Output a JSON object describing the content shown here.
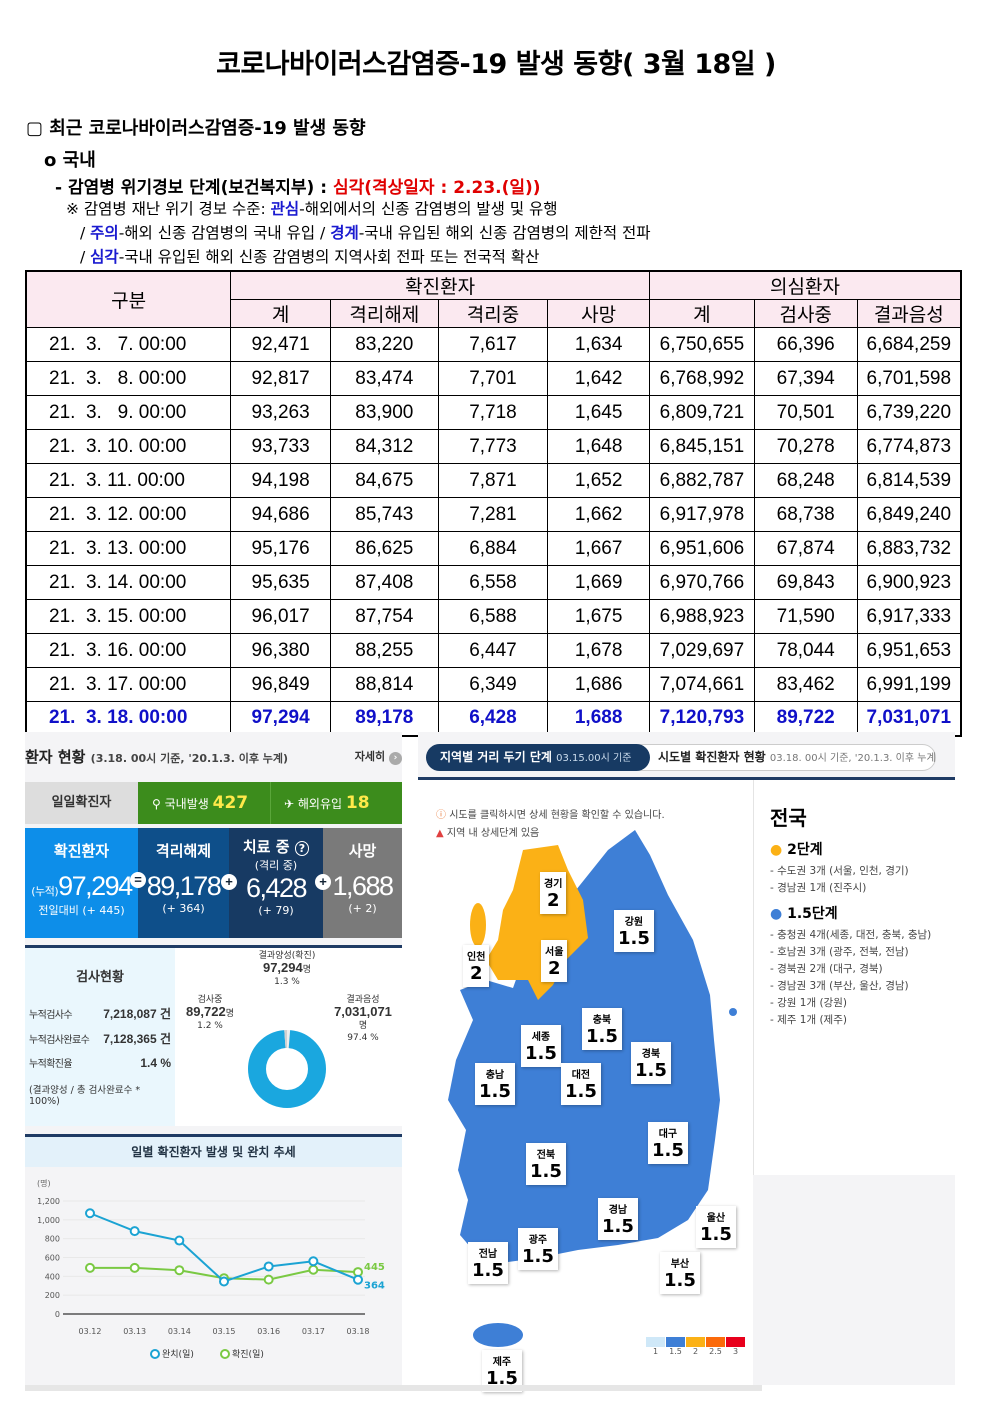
{
  "title": "코로나바이러스감염증-19 발생 동향( 3월 18일 )",
  "section": "▢ 최근 코로나바이러스감염증-19 발생 동향",
  "sub": "o 국내",
  "alert": {
    "label": "- 감염병 위기경보 단계(보건복지부) : ",
    "value": "심각(격상일자 : 2.23.(일))"
  },
  "levels": {
    "intro": "※ 감염병 재난 위기 경보 수준: ",
    "l1": "관심",
    "l1d": "-해외에서의 신종 감염병의 발생 및 유행",
    "l2": "주의",
    "l2d": "-해외 신종 감염병의 국내 유입 / ",
    "l3": "경계",
    "l3d": "-국내 유입된 해외 신종 감염병의 제한적 전파",
    "l4": "심각",
    "l4d": "-국내 유입된 해외 신종 감염병의 지역사회 전파 또는 전국적 확산",
    "slash": "/ "
  },
  "table": {
    "h_gubun": "구분",
    "h_confirmed": "확진환자",
    "h_suspected": "의심환자",
    "sub": [
      "계",
      "격리해제",
      "격리중",
      "사망",
      "계",
      "검사중",
      "결과음성"
    ],
    "rows": [
      [
        "21.  3.   7. 00:00",
        "92,471",
        "83,220",
        "7,617",
        "1,634",
        "6,750,655",
        "66,396",
        "6,684,259"
      ],
      [
        "21.  3.   8. 00:00",
        "92,817",
        "83,474",
        "7,701",
        "1,642",
        "6,768,992",
        "67,394",
        "6,701,598"
      ],
      [
        "21.  3.   9. 00:00",
        "93,263",
        "83,900",
        "7,718",
        "1,645",
        "6,809,721",
        "70,501",
        "6,739,220"
      ],
      [
        "21.  3. 10. 00:00",
        "93,733",
        "84,312",
        "7,773",
        "1,648",
        "6,845,151",
        "70,278",
        "6,774,873"
      ],
      [
        "21.  3. 11. 00:00",
        "94,198",
        "84,675",
        "7,871",
        "1,652",
        "6,882,787",
        "68,248",
        "6,814,539"
      ],
      [
        "21.  3. 12. 00:00",
        "94,686",
        "85,743",
        "7,281",
        "1,662",
        "6,917,978",
        "68,738",
        "6,849,240"
      ],
      [
        "21.  3. 13. 00:00",
        "95,176",
        "86,625",
        "6,884",
        "1,667",
        "6,951,606",
        "67,874",
        "6,883,732"
      ],
      [
        "21.  3. 14. 00:00",
        "95,635",
        "87,408",
        "6,558",
        "1,669",
        "6,970,766",
        "69,843",
        "6,900,923"
      ],
      [
        "21.  3. 15. 00:00",
        "96,017",
        "87,754",
        "6,588",
        "1,675",
        "6,988,923",
        "71,590",
        "6,917,333"
      ],
      [
        "21.  3. 16. 00:00",
        "96,380",
        "88,255",
        "6,447",
        "1,678",
        "7,029,697",
        "78,044",
        "6,951,653"
      ],
      [
        "21.  3. 17. 00:00",
        "96,849",
        "88,814",
        "6,349",
        "1,686",
        "7,074,661",
        "83,462",
        "6,991,199"
      ],
      [
        "21.  3. 18. 00:00",
        "97,294",
        "89,178",
        "6,428",
        "1,688",
        "7,120,793",
        "89,722",
        "7,031,071"
      ]
    ]
  },
  "status": {
    "title": "환자 현황",
    "note": "(3.18. 00시 기준, '20.1.3. 이후 누계)",
    "more": "자세히",
    "daily_label": "일일확진자",
    "domestic_label": "국내발생",
    "domestic": "427",
    "overseas_label": "해외유입",
    "overseas": "18",
    "confirmed": {
      "h": "확진환자",
      "prefix": "(누적)",
      "v": "97,294",
      "d": "전일대비 (+ 445)"
    },
    "released": {
      "h": "격리해제",
      "v": "89,178",
      "d": "(+ 364)"
    },
    "treating": {
      "h": "치료 중",
      "h2": "(격리 중)",
      "v": "6,428",
      "d": "(+ 79)"
    },
    "deaths": {
      "h": "사망",
      "v": "1,688",
      "d": "(+ 2)"
    },
    "ops": {
      "eq": "=",
      "plus": "+"
    },
    "colors": {
      "confirmed": "#0d8ee9",
      "released": "#0e4f8a",
      "treating": "#173a63",
      "deaths": "#7a7a7a",
      "green": "#3c8c1c"
    }
  },
  "tests": {
    "title": "검사현황",
    "rows": [
      {
        "k": "누적검사수",
        "v": "7,218,087 건"
      },
      {
        "k": "누적검사완료수",
        "v": "7,128,365 건"
      },
      {
        "k": "누적확진율",
        "v": "1.4 %"
      }
    ],
    "foot": "(결과양성 / 총 검사완료수 * 100%)",
    "donut": [
      {
        "label": "검사중",
        "value": "89,722",
        "unit": "명",
        "pct": 1.2,
        "pct_label": "1.2 %",
        "color": "#d0d0d0"
      },
      {
        "label": "결과양성(확진)",
        "value": "97,294",
        "unit": "명",
        "pct": 1.3,
        "pct_label": "1.3 %",
        "color": "#ffffff"
      },
      {
        "label": "결과음성",
        "value": "7,031,071",
        "unit": "명",
        "pct": 97.4,
        "pct_label": "97.4 %",
        "color": "#1aa7df"
      }
    ]
  },
  "chart_data": {
    "type": "line",
    "title": "일별 확진환자 발생 및 완치 추세",
    "ylabel": "(명)",
    "categories": [
      "03.12",
      "03.13",
      "03.14",
      "03.15",
      "03.16",
      "03.17",
      "03.18"
    ],
    "yticks": [
      "0",
      "200",
      "400",
      "600",
      "800",
      "1,000",
      "1,200"
    ],
    "ylim": [
      0,
      1200
    ],
    "series": [
      {
        "name": "완치(일)",
        "values": [
          1070,
          880,
          780,
          345,
          505,
          560,
          364
        ],
        "end_label": "364",
        "color": "#1ba3d3"
      },
      {
        "name": "확진(일)",
        "values": [
          490,
          490,
          465,
          380,
          365,
          470,
          445
        ],
        "end_label": "445",
        "color": "#7ac943"
      }
    ],
    "legend": "bottom",
    "grid": true
  },
  "map": {
    "tab1": "지역별 거리 두기 단계",
    "tab1_note": "03.15.00시 기준",
    "tab2": "시도별 확진환자 현황",
    "tab2_note": "03.18. 00시 기준, '20.1.3. 이후 누계",
    "info1": "시도를 클릭하시면 상세 현황을 확인할 수 있습니다.",
    "info2": "지역 내 상세단계 있음",
    "regions": [
      {
        "n": "경기",
        "s": "2"
      },
      {
        "n": "인천",
        "s": "2"
      },
      {
        "n": "서울",
        "s": "2"
      },
      {
        "n": "강원",
        "s": "1.5"
      },
      {
        "n": "충북",
        "s": "1.5"
      },
      {
        "n": "세종",
        "s": "1.5"
      },
      {
        "n": "충남",
        "s": "1.5"
      },
      {
        "n": "대전",
        "s": "1.5"
      },
      {
        "n": "경북",
        "s": "1.5"
      },
      {
        "n": "전북",
        "s": "1.5"
      },
      {
        "n": "대구",
        "s": "1.5"
      },
      {
        "n": "경남",
        "s": "1.5"
      },
      {
        "n": "울산",
        "s": "1.5"
      },
      {
        "n": "광주",
        "s": "1.5"
      },
      {
        "n": "부산",
        "s": "1.5"
      },
      {
        "n": "전남",
        "s": "1.5"
      },
      {
        "n": "제주",
        "s": "1.5"
      }
    ],
    "scale": [
      {
        "v": "1",
        "c": "#cfe8f8"
      },
      {
        "v": "1.5",
        "c": "#3e7fd6"
      },
      {
        "v": "2",
        "c": "#fbb116"
      },
      {
        "v": "2.5",
        "c": "#fb6a0a"
      },
      {
        "v": "3",
        "c": "#e8001c"
      }
    ],
    "side": {
      "title": "전국",
      "g1": "2단계",
      "g1_items": [
        "- 수도권 3개 (서울, 인천, 경기)",
        "- 경남권 1개 (진주시)"
      ],
      "g2": "1.5단계",
      "g2_items": [
        "- 충청권 4개(세종, 대전, 충북, 충남)",
        "- 호남권 3개 (광주, 전북, 전남)",
        "- 경북권 2개 (대구, 경북)",
        "- 경남권 3개 (부산, 울산, 경남)",
        "- 강원 1개 (강원)",
        "- 제주 1개 (제주)"
      ]
    }
  }
}
